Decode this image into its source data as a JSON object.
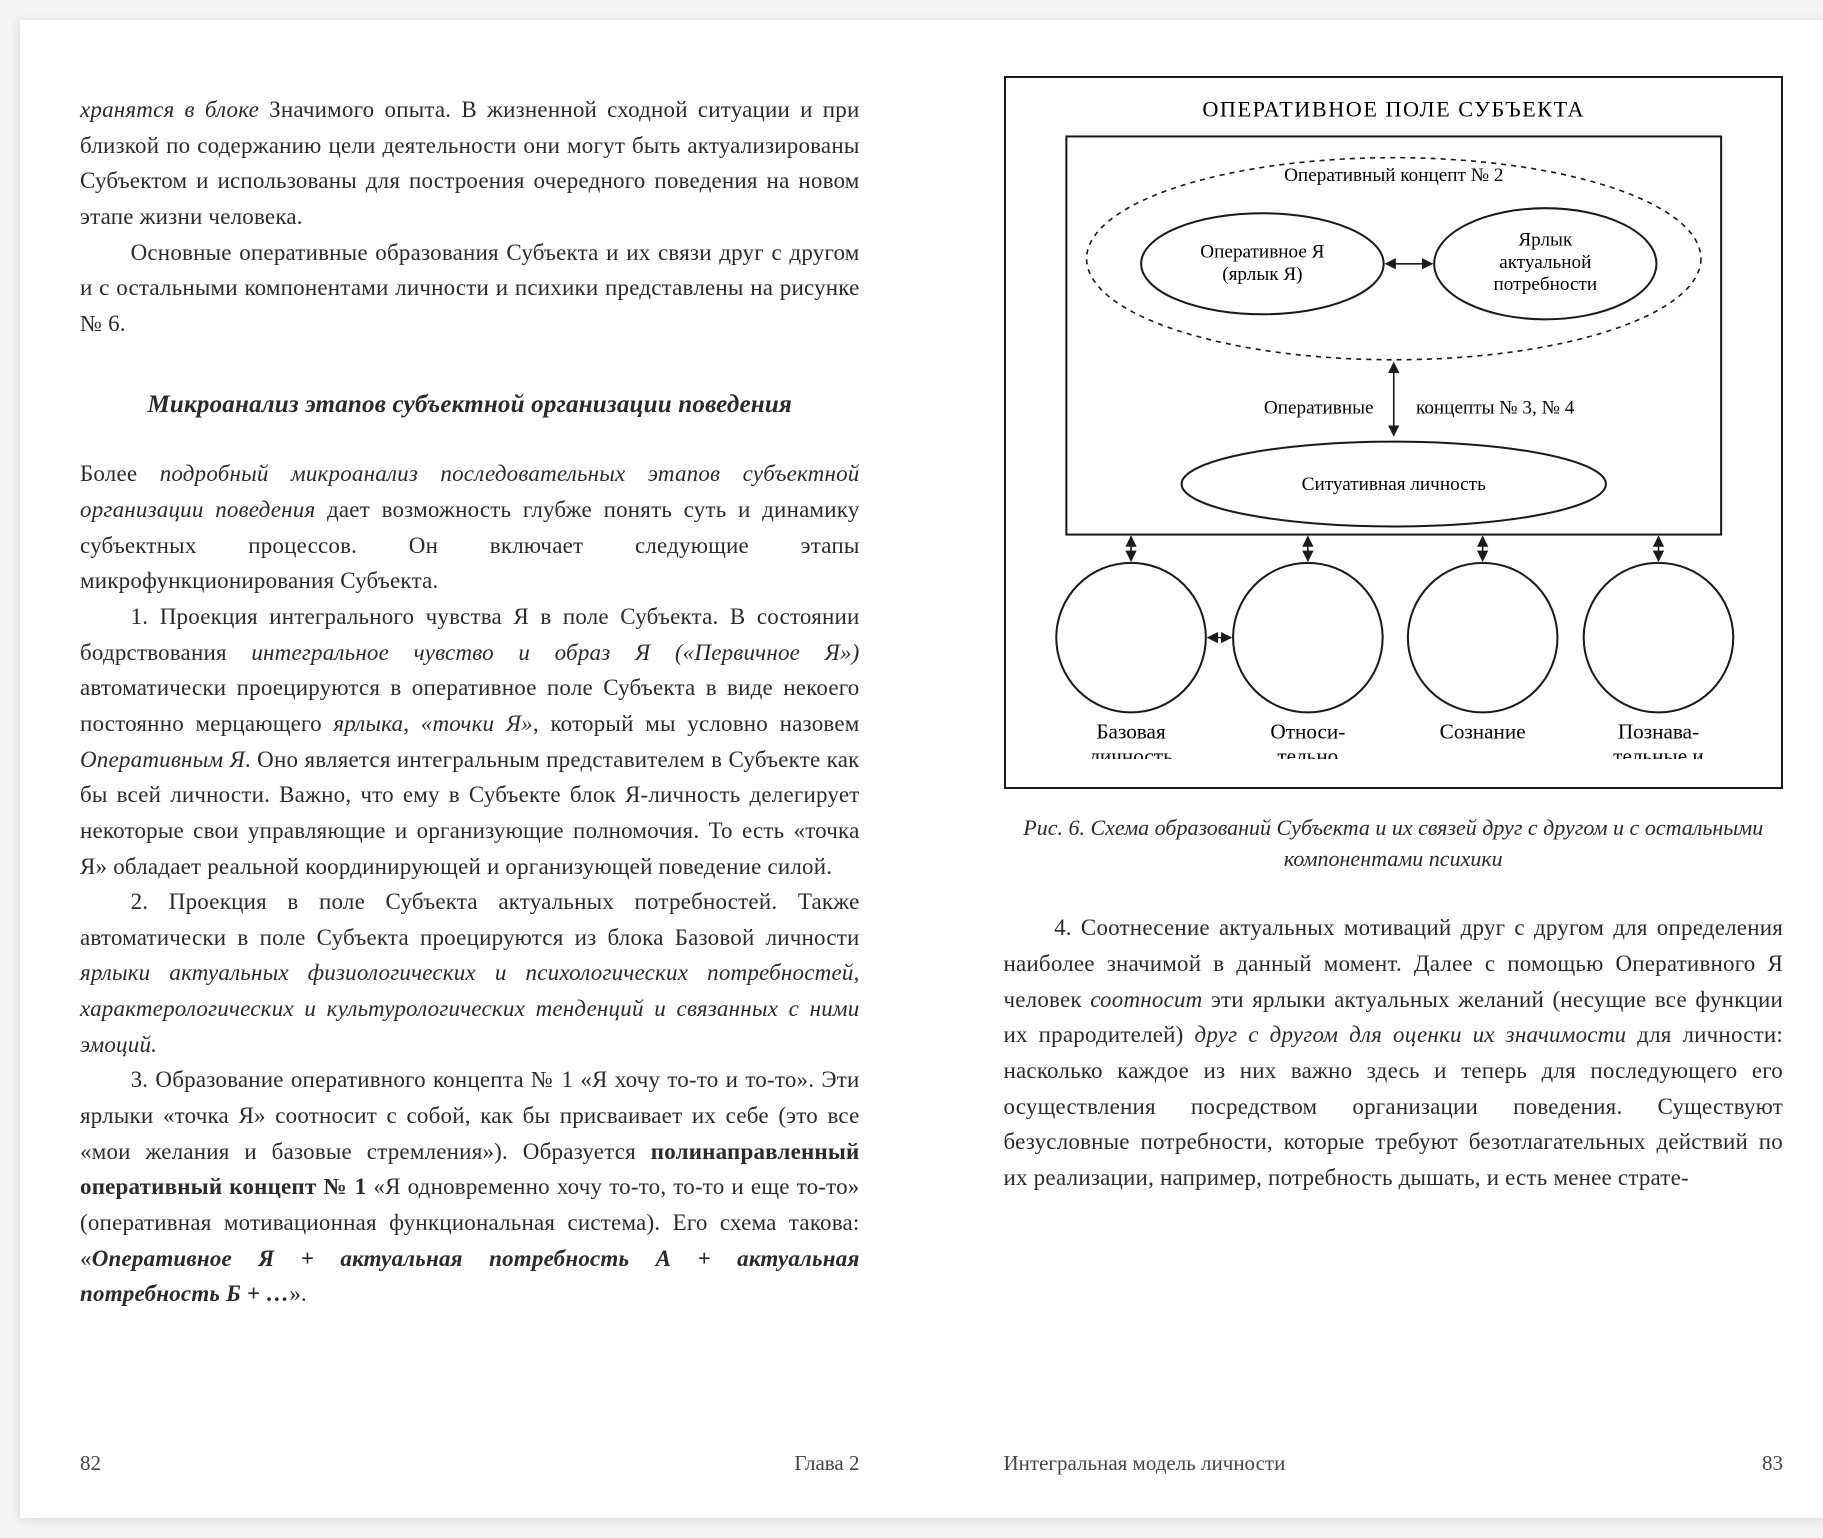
{
  "left": {
    "para1_pre_italic": "хранятся в блоке",
    "para1_rest": " Значимого опыта. В жизненной сходной ситуации и при близкой по содержанию цели деятельности они могут быть актуализированы Субъектом и использованы для построения очередного поведения на новом этапе жизни человека.",
    "para2": "Основные оперативные образования Субъекта и их связи друг с другом и с остальными компонентами личности и психики представлены на рисунке № 6.",
    "section_title": "Микроанализ этапов субъектной организации поведения",
    "para3_a": "Более ",
    "para3_i": "подробный микроанализ последовательных этапов субъектной организации поведения",
    "para3_b": " дает возможность глубже понять суть и динамику субъектных процессов. Он включает следующие этапы микрофункционирования Субъекта.",
    "para4_a": "1. Проекция интегрального чувства Я в поле Субъекта. В состоянии бодрствования ",
    "para4_i1": "интегральное чувство и образ Я («Первичное Я»)",
    "para4_b": " автоматически проецируются в оперативное поле Субъекта в виде некоего постоянно мерцающего ",
    "para4_i2": "ярлыка, «точки Я»",
    "para4_c": ", который мы условно назовем ",
    "para4_i3": "Оперативным Я",
    "para4_d": ". Оно является интегральным представителем в Субъекте как бы всей личности. Важно, что ему в Субъекте блок Я-личность делегирует некоторые свои управляющие и организующие полномочия. То есть «точка Я» обладает реальной координирующей и организующей поведение силой.",
    "para5_a": "2. Проекция в поле Субъекта актуальных потребностей. Также автоматически в поле Субъекта проецируются из блока Базовой личности ",
    "para5_i": "ярлыки актуальных физиологических и психологических потребностей, характерологических и культурологических тенденций и связанных с ними эмоций.",
    "para6_a": "3. Образование оперативного концепта № 1 «Я хочу то-то и то-то». Эти ярлыки «точка Я» соотносит с собой, как бы присваивает их себе (это все «мои желания и базовые стремления»). Образуется ",
    "para6_b1": "полинаправленный оперативный концепт № 1",
    "para6_b": " «Я одновременно хочу то-то, то-то и еще то-то» (оперативная мотивационная функциональная система). Его схема такова: «",
    "para6_bi": "Оперативное Я + актуальная потребность А + актуальная потребность Б + …",
    "para6_c": "».",
    "page_num": "82",
    "chapter": "Глава 2"
  },
  "right": {
    "diagram": {
      "title": "ОПЕРАТИВНОЕ ПОЛЕ СУБЪЕКТА",
      "concept2": "Оперативный концепт № 2",
      "oper_ya_1": "Оперативное Я",
      "oper_ya_2": "(ярлык Я)",
      "yarlyk_1": "Ярлык",
      "yarlyk_2": "актуальной",
      "yarlyk_3": "потребности",
      "concepts_left": "Оперативные",
      "concepts_right": "концепты  № 3, № 4",
      "situative": "Ситуативная личность",
      "bottom": [
        "Базовая\nличность\nПервичные\nэмоции",
        "Относи-\nтельно\nустойчивая\nличность",
        "Сознание",
        "Познава-\nтельные и\nпсихомо-\nторные\nпроцессы"
      ],
      "colors": {
        "stroke": "#1a1a1a",
        "text": "#1a1a1a",
        "bg": "#ffffff"
      },
      "font_size_title": 22,
      "font_size_node": 19,
      "font_size_bottom": 21
    },
    "caption": "Рис. 6. Схема образований Субъекта и их связей друг с другом и с остальными компонентами психики",
    "para_a": "4. Соотнесение актуальных мотиваций друг с другом для определения наиболее значимой в данный момент. Далее с помощью Оперативного Я человек ",
    "para_i1": "соотносит",
    "para_b": " эти ярлыки актуальных желаний (несущие все функции их прародителей) ",
    "para_i2": "друг с другом для оценки их значимости",
    "para_c": " для личности: насколько каждое из них важно здесь и теперь для последующего его осуществления посредством организации поведения. Существуют безусловные потребности, которые требуют безотлагательных действий по их реализации, например, потребность дышать, и есть менее страте-",
    "page_num": "83",
    "chapter": "Интегральная модель личности"
  }
}
